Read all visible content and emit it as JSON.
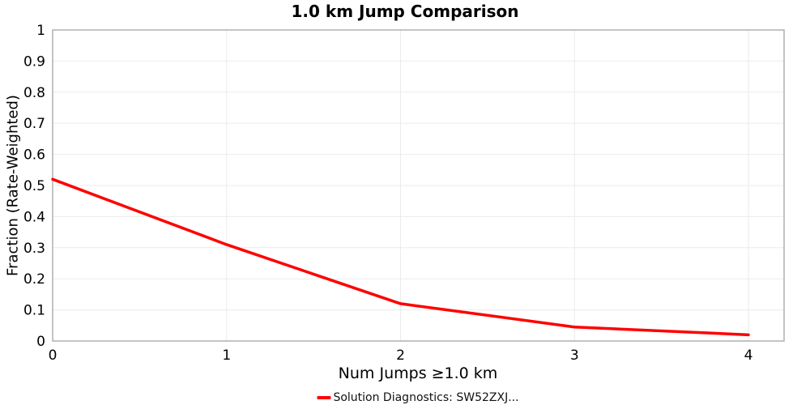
{
  "colors": {
    "line": "#ff0000",
    "grid": "#ebebeb",
    "frame": "#b0b0b0",
    "text": "#000000"
  },
  "chart_data": {
    "type": "line",
    "title": "1.0 km Jump Comparison",
    "xlabel": "Num Jumps ≥1.0 km",
    "ylabel": "Fraction (Rate-Weighted)",
    "x": [
      0,
      1,
      2,
      3,
      4
    ],
    "series": [
      {
        "name": "Solution Diagnostics: SW52ZXJ...",
        "values": [
          0.52,
          0.31,
          0.12,
          0.045,
          0.02
        ],
        "color": "#ff0000"
      }
    ],
    "xlim": [
      0,
      4.205
    ],
    "ylim": [
      0,
      1
    ],
    "xticks": [
      0,
      1,
      2,
      3,
      4
    ],
    "xtick_labels": [
      "0",
      "1",
      "2",
      "3",
      "4"
    ],
    "yticks": [
      0,
      0.1,
      0.2,
      0.3,
      0.4,
      0.5,
      0.6,
      0.7,
      0.8,
      0.9,
      1
    ],
    "ytick_labels": [
      "0",
      "0.1",
      "0.2",
      "0.3",
      "0.4",
      "0.5",
      "0.6",
      "0.7",
      "0.8",
      "0.9",
      "1"
    ],
    "grid": true,
    "legend_position": "bottom-center"
  }
}
